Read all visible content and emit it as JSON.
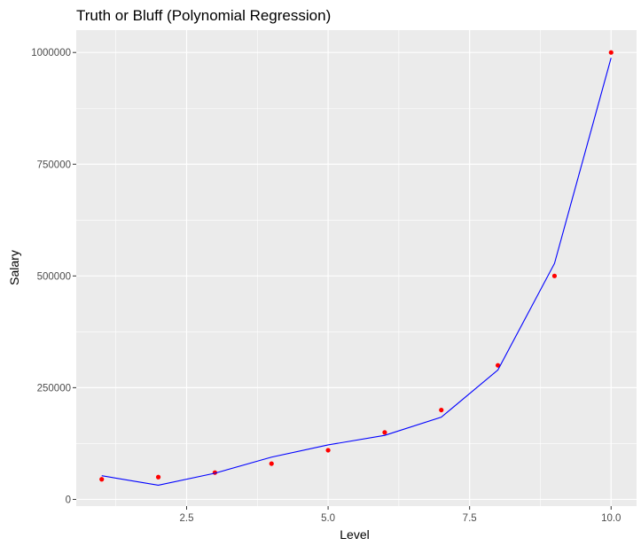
{
  "chart_data": {
    "type": "scatter",
    "title": "Truth or Bluff (Polynomial Regression)",
    "xlabel": "Level",
    "ylabel": "Salary",
    "xlim": [
      0.55,
      10.45
    ],
    "ylim": [
      -15000,
      1050000
    ],
    "x_ticks": [
      2.5,
      5.0,
      7.5,
      10.0
    ],
    "x_tick_labels": [
      "2.5",
      "5.0",
      "7.5",
      "10.0"
    ],
    "y_ticks": [
      0,
      250000,
      500000,
      750000,
      1000000
    ],
    "y_tick_labels": [
      "0",
      "250000",
      "500000",
      "750000",
      "1000000"
    ],
    "grid": true,
    "panel_background": "#ebebeb",
    "grid_color": "#ffffff",
    "series": [
      {
        "kind": "points",
        "color": "#ff0000",
        "x": [
          1,
          2,
          3,
          4,
          5,
          6,
          7,
          8,
          9,
          10
        ],
        "y": [
          45000,
          50000,
          60000,
          80000,
          110000,
          150000,
          200000,
          300000,
          500000,
          1000000
        ]
      },
      {
        "kind": "line",
        "color": "#0000ff",
        "x": [
          1,
          2,
          3,
          4,
          5,
          6,
          7,
          8,
          9,
          10
        ],
        "y": [
          53000,
          31800,
          58600,
          94600,
          121900,
          143300,
          184000,
          289700,
          528000,
          988000
        ]
      }
    ]
  }
}
